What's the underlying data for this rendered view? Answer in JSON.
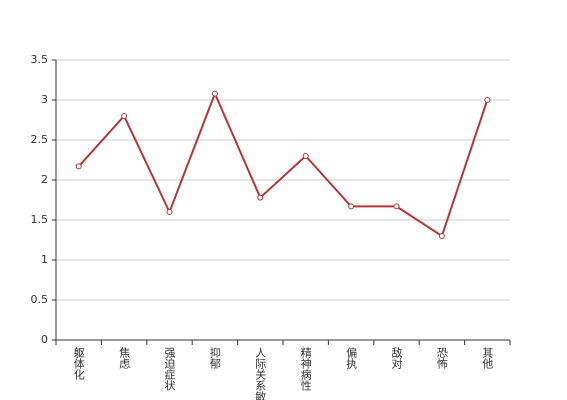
{
  "chart_data": {
    "type": "line",
    "categories": [
      "躯体化",
      "焦虑",
      "强迫症状",
      "抑郁",
      "人际关系敏感",
      "精神病性",
      "偏执",
      "敌对",
      "恐怖",
      "其他"
    ],
    "values": [
      2.17,
      2.8,
      1.6,
      3.08,
      1.78,
      2.3,
      1.67,
      1.67,
      1.3,
      3.0
    ],
    "color": "#b83434",
    "ylim": [
      0,
      3.5
    ],
    "yticks": [
      0,
      0.5,
      1,
      1.5,
      2,
      2.5,
      3,
      3.5
    ],
    "grid": true
  }
}
